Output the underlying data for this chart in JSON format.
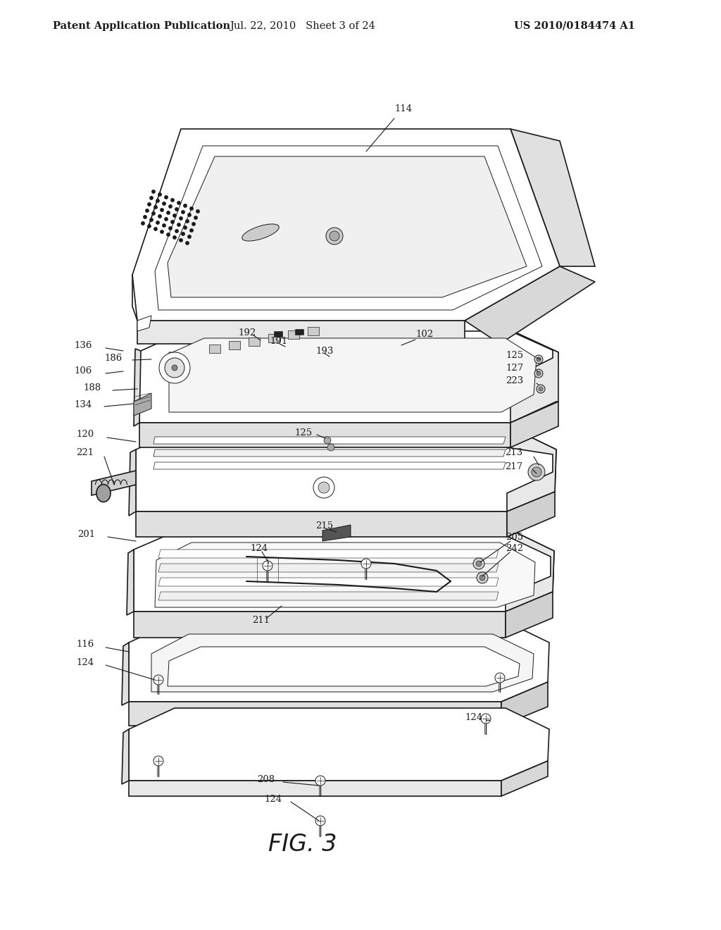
{
  "background_color": "#ffffff",
  "header_left": "Patent Application Publication",
  "header_center": "Jul. 22, 2010   Sheet 3 of 24",
  "header_right": "US 2010/0184474 A1",
  "figure_label": "FIG. 3",
  "line_color": "#1a1a1a",
  "annotation_fontsize": 9.5
}
